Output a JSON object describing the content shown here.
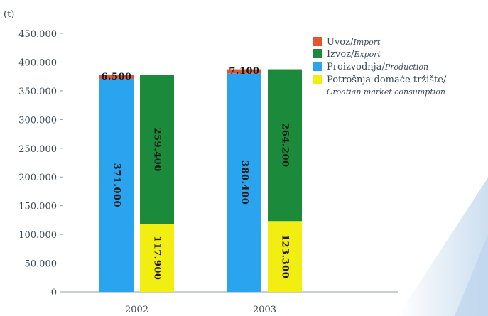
{
  "chart_data": {
    "type": "bar",
    "stacked": true,
    "ylabel": "(t)",
    "ylim": [
      0,
      450000
    ],
    "yticks": [
      0,
      50000,
      100000,
      150000,
      200000,
      250000,
      300000,
      350000,
      400000,
      450000
    ],
    "ytick_labels": [
      "0",
      "50.000",
      "100.000",
      "150.000",
      "200.000",
      "250.000",
      "300.000",
      "350.000",
      "400.000",
      "450.000"
    ],
    "categories": [
      "2002",
      "2003"
    ],
    "stacks": [
      {
        "category": "2002",
        "bars": [
          {
            "segments": [
              {
                "series": "production",
                "value": 371000,
                "label": "371.000"
              },
              {
                "series": "import",
                "value": 6500,
                "label": "6.500"
              }
            ]
          },
          {
            "segments": [
              {
                "series": "consumption",
                "value": 117900,
                "label": "117.900"
              },
              {
                "series": "export",
                "value": 259400,
                "label": "259.400"
              }
            ]
          }
        ]
      },
      {
        "category": "2003",
        "bars": [
          {
            "segments": [
              {
                "series": "production",
                "value": 380400,
                "label": "380.400"
              },
              {
                "series": "import",
                "value": 7100,
                "label": "7.100"
              }
            ]
          },
          {
            "segments": [
              {
                "series": "consumption",
                "value": 123300,
                "label": "123.300"
              },
              {
                "series": "export",
                "value": 264200,
                "label": "264.200"
              }
            ]
          }
        ]
      }
    ],
    "legend": [
      {
        "key": "import",
        "label": "Uvoz/",
        "sub": "Import",
        "color": "#e8542a"
      },
      {
        "key": "export",
        "label": "Izvoz/",
        "sub": "Export",
        "color": "#1b8a3a"
      },
      {
        "key": "production",
        "label": "Proizvodnja/",
        "sub": "Production",
        "color": "#2aa4ee"
      },
      {
        "key": "consumption",
        "label": "Potrošnja-domaće tržište/",
        "sub": "Croatian market consumption",
        "color": "#f2ee12"
      }
    ],
    "legend_position": "top-right",
    "grid": false
  }
}
